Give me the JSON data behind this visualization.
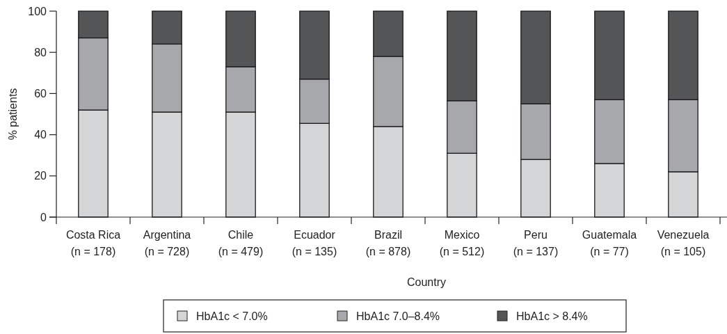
{
  "chart_data": {
    "type": "bar",
    "stacked": true,
    "xlabel": "Country",
    "ylabel": "% patients",
    "categories": [
      "Costa Rica\n(n = 178)",
      "Argentina\n(n = 728)",
      "Chile\n(n = 479)",
      "Ecuador\n(n = 135)",
      "Brazil\n(n = 878)",
      "Mexico\n(n = 512)",
      "Peru\n(n = 137)",
      "Guatemala\n(n = 77)",
      "Venezuela\n(n = 105)"
    ],
    "series": [
      {
        "name": "HbA1c < 7.0%",
        "color": "#d4d5d7",
        "values": [
          52,
          51,
          51,
          45.5,
          44,
          31,
          28,
          26,
          22
        ]
      },
      {
        "name": "HbA1c 7.0–8.4%",
        "color": "#a7a8ab",
        "values": [
          35,
          33,
          22,
          21.5,
          34,
          25.5,
          27,
          31,
          35
        ]
      },
      {
        "name": "HbA1c > 8.4%",
        "color": "#545557",
        "values": [
          13,
          16,
          27,
          33,
          22,
          43.5,
          45,
          43,
          43
        ]
      }
    ],
    "ylim": [
      0,
      100
    ],
    "yticks": [
      0,
      20,
      40,
      60,
      80,
      100
    ],
    "grid": false,
    "legend": "bottom"
  }
}
